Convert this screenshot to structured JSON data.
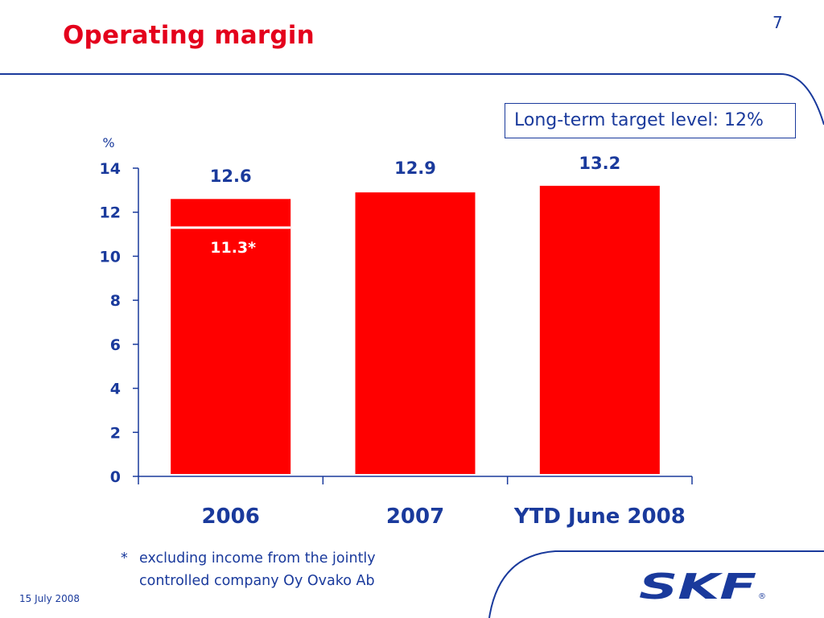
{
  "page_number": "7",
  "title": "Operating margin",
  "target_label": "Long-term target level: 12%",
  "footnote": {
    "marker": "*",
    "text": "excluding income from the jointly controlled company Oy Ovako Ab"
  },
  "date": "15 July 2008",
  "logo_text": "SKF",
  "logo_mark": "®",
  "colors": {
    "brand_red": "#e4001c",
    "text_blue": "#1a3a9c",
    "bar_red": "#ff0000"
  },
  "chart_data": {
    "type": "bar",
    "title": "",
    "ylabel": "%",
    "xlabel": "",
    "ylim": [
      0,
      14
    ],
    "yticks": [
      0,
      2,
      4,
      6,
      8,
      10,
      12,
      14
    ],
    "categories": [
      "2006",
      "2007",
      "YTD June 2008"
    ],
    "values": [
      12.6,
      12.9,
      13.2
    ],
    "value_labels": [
      "12.6",
      "12.9",
      "13.2"
    ],
    "annotations": [
      {
        "category": "2006",
        "value": 11.3,
        "label": "11.3*"
      }
    ],
    "grid": false,
    "legend": "none"
  }
}
